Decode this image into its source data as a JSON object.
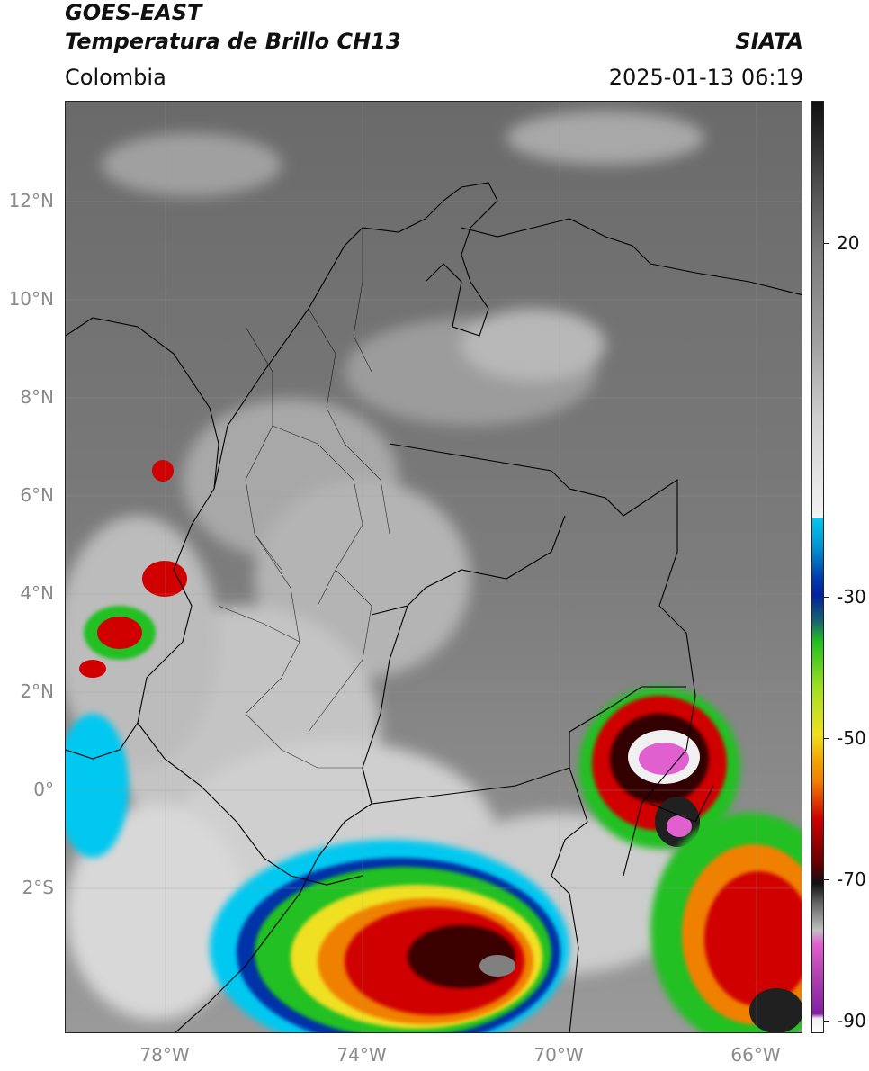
{
  "header": {
    "satellite": "GOES-EAST",
    "product": "Temperatura de Brillo CH13",
    "organization": "SIATA",
    "region": "Colombia",
    "timestamp": "2025-01-13 06:19"
  },
  "map": {
    "lat_labels": [
      "12°N",
      "10°N",
      "8°N",
      "6°N",
      "4°N",
      "2°N",
      "0°",
      "2°S"
    ],
    "lon_labels": [
      "78°W",
      "74°W",
      "70°W",
      "66°W"
    ]
  },
  "colorbar": {
    "labels": [
      "20",
      "-30",
      "-50",
      "-70",
      "-90"
    ],
    "colors": {
      "warm_gray": "#7a7a7a",
      "white": "#f2f2f2",
      "cyan": "#00c8f0",
      "blue": "#0020a0",
      "green": "#20c020",
      "yellow": "#f0e020",
      "orange": "#f08000",
      "red": "#d00000",
      "black": "#101010",
      "pink": "#e060d0",
      "purple": "#8020a0"
    }
  }
}
